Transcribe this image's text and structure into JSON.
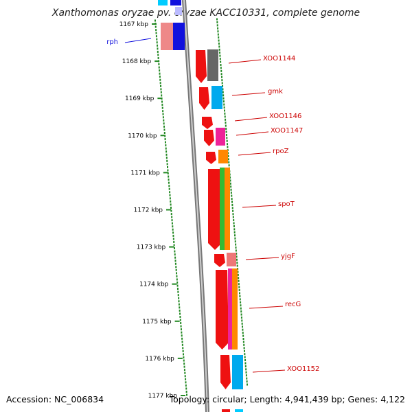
{
  "title": "Xanthomonas oryzae pv. oryzae KACC10331, complete genome",
  "accession": "Accession: NC_006834",
  "summary": "Topology: circular; Length: 4,941,439 bp; Genes: 4,122",
  "scale_labels": [
    "1167 kbp",
    "1168 kbp",
    "1169 kbp",
    "1170 kbp",
    "1171 kbp",
    "1172 kbp",
    "1173 kbp",
    "1174 kbp",
    "1175 kbp",
    "1176 kbp",
    "1177 kbp"
  ],
  "colors": {
    "forward_cds": "#ee1111",
    "leader_left": "#1111dd",
    "leader_right": "#cc0000",
    "backbone": "#888888"
  },
  "genes": [
    {
      "name": "rph",
      "side": "left",
      "color": "#1111dd"
    },
    {
      "name": "XOO1144",
      "side": "right",
      "color": "#cc0000"
    },
    {
      "name": "gmk",
      "side": "right",
      "color": "#cc0000"
    },
    {
      "name": "XOO1146",
      "side": "right",
      "color": "#cc0000"
    },
    {
      "name": "XOO1147",
      "side": "right",
      "color": "#cc0000"
    },
    {
      "name": "rpoZ",
      "side": "right",
      "color": "#cc0000"
    },
    {
      "name": "spoT",
      "side": "right",
      "color": "#cc0000"
    },
    {
      "name": "yjgF",
      "side": "right",
      "color": "#cc0000"
    },
    {
      "name": "recG",
      "side": "right",
      "color": "#cc0000"
    },
    {
      "name": "XOO1152",
      "side": "right",
      "color": "#cc0000"
    }
  ]
}
